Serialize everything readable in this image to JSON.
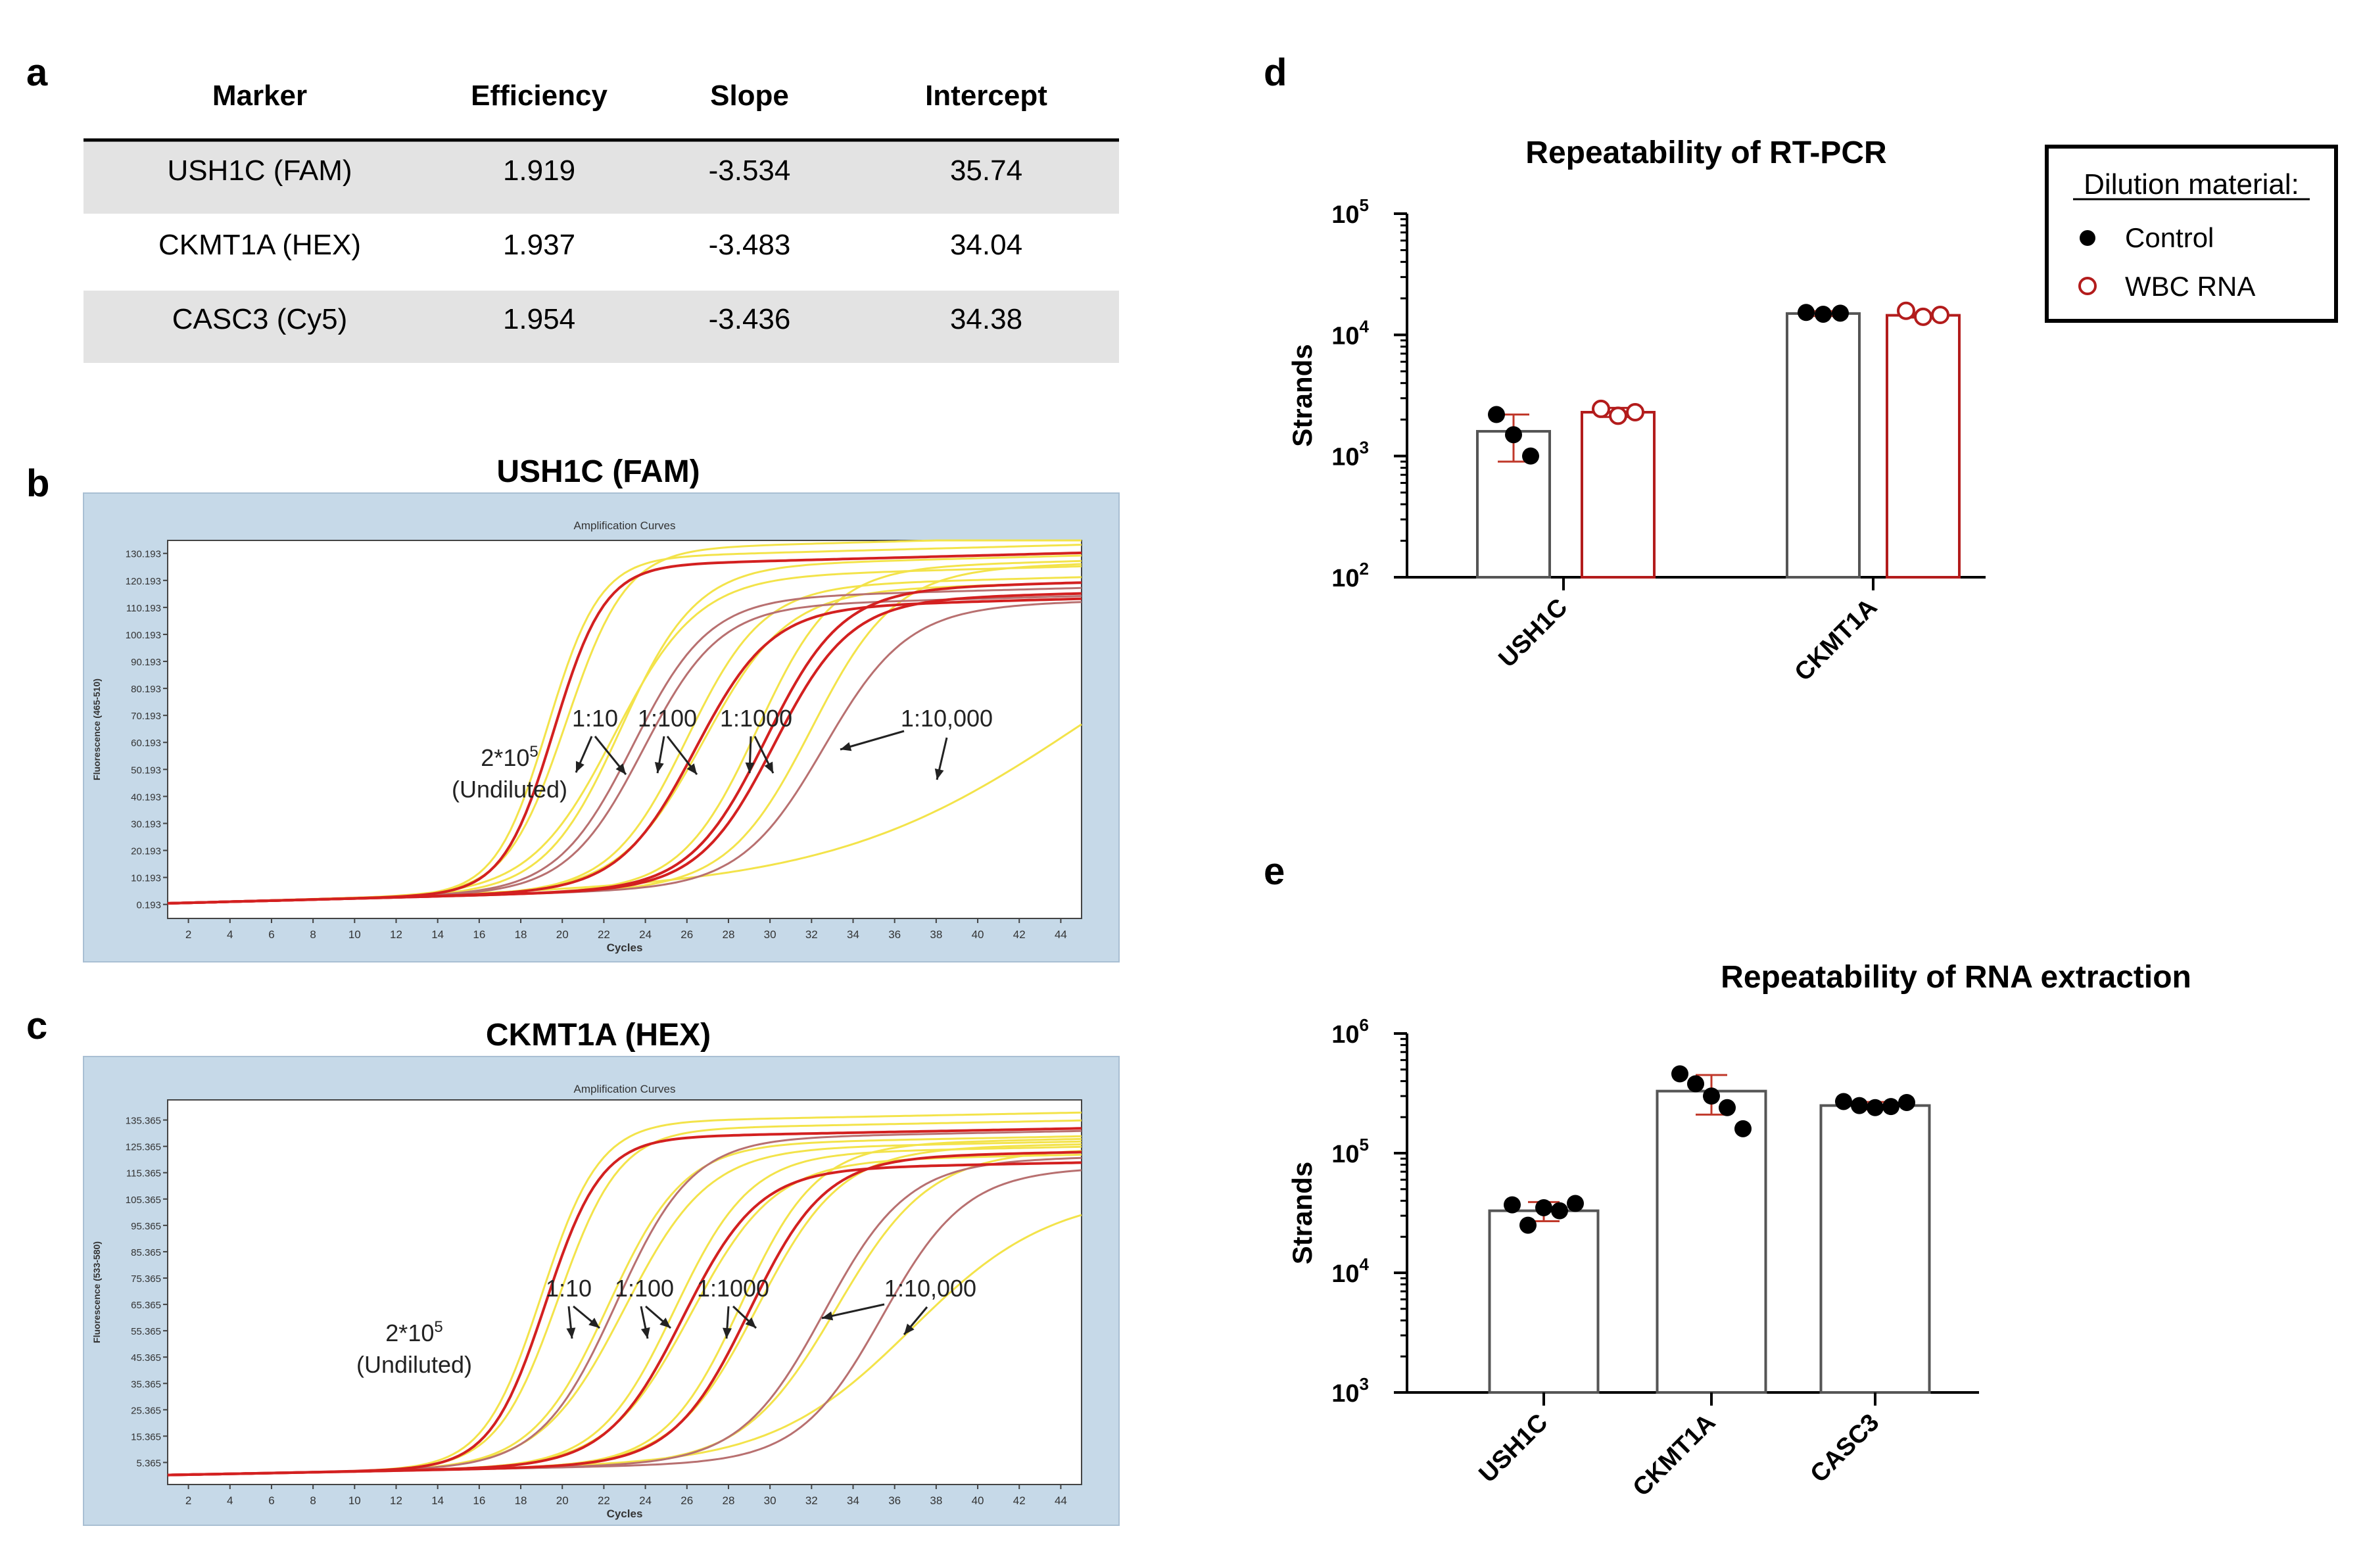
{
  "panels": {
    "a": "a",
    "b": "b",
    "c": "c",
    "d": "d",
    "e": "e"
  },
  "table": {
    "headers": [
      "Marker",
      "Efficiency",
      "Slope",
      "Intercept"
    ],
    "rows": [
      [
        "USH1C (FAM)",
        "1.919",
        "-3.534",
        "35.74"
      ],
      [
        "CKMT1A (HEX)",
        "1.937",
        "-3.483",
        "34.04"
      ],
      [
        "CASC3 (Cy5)",
        "1.954",
        "-3.436",
        "34.38"
      ]
    ]
  },
  "colors": {
    "panel_bg": "#c6d9e8",
    "row_shade": "#e3e3e3",
    "control": "#000000",
    "wbc": "#b31c1c",
    "bar_gray": "#555555",
    "curve_red": "#d32020",
    "curve_yellow": "#f3e34a",
    "curve_rose": "#b87070"
  },
  "chart_data": [
    {
      "id": "b",
      "type": "line",
      "title": "USH1C (FAM)",
      "subtitle": "Amplification Curves",
      "xlabel": "Cycles",
      "ylabel": "Fluorescence (465-510)",
      "xlim": [
        1,
        45
      ],
      "ylim": [
        -5,
        135
      ],
      "x_ticks": [
        2,
        4,
        6,
        8,
        10,
        12,
        14,
        16,
        18,
        20,
        22,
        24,
        26,
        28,
        30,
        32,
        34,
        36,
        38,
        40,
        42,
        44
      ],
      "y_ticks": [
        "0.193",
        "10.193",
        "20.193",
        "30.193",
        "40.193",
        "50.193",
        "60.193",
        "70.193",
        "80.193",
        "90.193",
        "100.193",
        "110.193",
        "120.193",
        "130.193"
      ],
      "y_tick_values": [
        0.193,
        10.193,
        20.193,
        30.193,
        40.193,
        50.193,
        60.193,
        70.193,
        80.193,
        90.193,
        100.193,
        110.193,
        120.193,
        130.193
      ],
      "series": [
        {
          "name": "Undiluted",
          "color": "red",
          "mid": 19.6,
          "k": 0.82,
          "top": 121,
          "base": 0.6,
          "drift": 0.2
        },
        {
          "name": "Undiluted",
          "color": "yellow",
          "mid": 19.3,
          "k": 0.8,
          "top": 124,
          "base": 0.6,
          "drift": 0.2
        },
        {
          "name": "Undiluted",
          "color": "yellow",
          "mid": 20.2,
          "k": 0.7,
          "top": 127,
          "base": 0.6,
          "drift": 0.2
        },
        {
          "name": "1:10",
          "color": "rose",
          "mid": 23.4,
          "k": 0.55,
          "top": 108,
          "base": 0.6,
          "drift": 0.2
        },
        {
          "name": "1:10",
          "color": "rose",
          "mid": 23.9,
          "k": 0.55,
          "top": 105,
          "base": 0.6,
          "drift": 0.2
        },
        {
          "name": "1:10",
          "color": "yellow",
          "mid": 22.8,
          "k": 0.55,
          "top": 120,
          "base": 0.6,
          "drift": 0.2
        },
        {
          "name": "1:10",
          "color": "yellow",
          "mid": 22.5,
          "k": 0.5,
          "top": 116,
          "base": 0.6,
          "drift": 0.2
        },
        {
          "name": "1:100",
          "color": "red",
          "mid": 26.4,
          "k": 0.55,
          "top": 104,
          "base": 0.6,
          "drift": 0.2
        },
        {
          "name": "1:100",
          "color": "yellow",
          "mid": 26.0,
          "k": 0.55,
          "top": 112,
          "base": 0.6,
          "drift": 0.2
        },
        {
          "name": "1:100",
          "color": "yellow",
          "mid": 26.8,
          "k": 0.5,
          "top": 110,
          "base": 0.6,
          "drift": 0.2
        },
        {
          "name": "1:1000",
          "color": "red",
          "mid": 29.8,
          "k": 0.55,
          "top": 110,
          "base": 0.6,
          "drift": 0.2
        },
        {
          "name": "1:1000",
          "color": "red",
          "mid": 30.2,
          "k": 0.55,
          "top": 106,
          "base": 0.6,
          "drift": 0.2
        },
        {
          "name": "1:1000",
          "color": "yellow",
          "mid": 29.4,
          "k": 0.55,
          "top": 118,
          "base": 0.6,
          "drift": 0.2
        },
        {
          "name": "1:10,000",
          "color": "rose",
          "mid": 32.6,
          "k": 0.5,
          "top": 103,
          "base": 0.6,
          "drift": 0.2
        },
        {
          "name": "1:10,000",
          "color": "yellow",
          "mid": 32.0,
          "k": 0.5,
          "top": 117,
          "base": 0.6,
          "drift": 0.2
        },
        {
          "name": "1:10,000",
          "color": "yellow",
          "mid": 45.0,
          "k": 0.17,
          "top": 115,
          "base": 0.6,
          "drift": 0.2
        }
      ],
      "annotations": {
        "undiluted_top": "2*10",
        "undiluted_sup": "5",
        "undiluted_bottom": "(Undiluted)",
        "d1": "1:10",
        "d2": "1:100",
        "d3": "1:1000",
        "d4": "1:10,000"
      }
    },
    {
      "id": "c",
      "type": "line",
      "title": "CKMT1A (HEX)",
      "subtitle": "Amplification Curves",
      "xlabel": "Cycles",
      "ylabel": "Fluorescence (533-580)",
      "xlim": [
        1,
        45
      ],
      "ylim": [
        -3,
        143
      ],
      "x_ticks": [
        2,
        4,
        6,
        8,
        10,
        12,
        14,
        16,
        18,
        20,
        22,
        24,
        26,
        28,
        30,
        32,
        34,
        36,
        38,
        40,
        42,
        44
      ],
      "y_ticks": [
        "5.365",
        "15.365",
        "25.365",
        "35.365",
        "45.365",
        "55.365",
        "65.365",
        "75.365",
        "85.365",
        "95.365",
        "105.365",
        "115.365",
        "125.365",
        "135.365"
      ],
      "y_tick_values": [
        5.365,
        15.365,
        25.365,
        35.365,
        45.365,
        55.365,
        65.365,
        75.365,
        85.365,
        95.365,
        105.365,
        115.365,
        125.365,
        135.365
      ],
      "series": [
        {
          "name": "Undiluted",
          "color": "red",
          "mid": 19.2,
          "k": 0.75,
          "top": 125,
          "base": 0.6,
          "drift": 0.15
        },
        {
          "name": "Undiluted",
          "color": "yellow",
          "mid": 19.0,
          "k": 0.72,
          "top": 131,
          "base": 0.6,
          "drift": 0.15
        },
        {
          "name": "Undiluted",
          "color": "yellow",
          "mid": 19.8,
          "k": 0.68,
          "top": 128,
          "base": 0.6,
          "drift": 0.15
        },
        {
          "name": "1:10",
          "color": "rose",
          "mid": 22.6,
          "k": 0.55,
          "top": 124,
          "base": 0.6,
          "drift": 0.15
        },
        {
          "name": "1:10",
          "color": "yellow",
          "mid": 22.2,
          "k": 0.55,
          "top": 122,
          "base": 0.6,
          "drift": 0.15
        },
        {
          "name": "1:10",
          "color": "yellow",
          "mid": 23.0,
          "k": 0.5,
          "top": 120,
          "base": 0.6,
          "drift": 0.15
        },
        {
          "name": "1:100",
          "color": "red",
          "mid": 25.8,
          "k": 0.55,
          "top": 112,
          "base": 0.6,
          "drift": 0.15
        },
        {
          "name": "1:100",
          "color": "yellow",
          "mid": 25.4,
          "k": 0.55,
          "top": 118,
          "base": 0.6,
          "drift": 0.15
        },
        {
          "name": "1:100",
          "color": "yellow",
          "mid": 26.2,
          "k": 0.5,
          "top": 115,
          "base": 0.6,
          "drift": 0.15
        },
        {
          "name": "1:1000",
          "color": "red",
          "mid": 29.0,
          "k": 0.55,
          "top": 116,
          "base": 0.6,
          "drift": 0.15
        },
        {
          "name": "1:1000",
          "color": "yellow",
          "mid": 28.6,
          "k": 0.55,
          "top": 121,
          "base": 0.6,
          "drift": 0.15
        },
        {
          "name": "1:1000",
          "color": "yellow",
          "mid": 29.4,
          "k": 0.5,
          "top": 119,
          "base": 0.6,
          "drift": 0.15
        },
        {
          "name": "1:10,000",
          "color": "rose",
          "mid": 32.6,
          "k": 0.5,
          "top": 114,
          "base": 0.6,
          "drift": 0.15
        },
        {
          "name": "1:10,000",
          "color": "rose",
          "mid": 35.4,
          "k": 0.5,
          "top": 110,
          "base": 0.6,
          "drift": 0.15
        },
        {
          "name": "1:10,000",
          "color": "yellow",
          "mid": 33.2,
          "k": 0.45,
          "top": 117,
          "base": 0.6,
          "drift": 0.15
        },
        {
          "name": "1:10,000",
          "color": "yellow",
          "mid": 36.8,
          "k": 0.3,
          "top": 100,
          "base": 0.6,
          "drift": 0.15
        }
      ],
      "annotations": {
        "undiluted_top": "2*10",
        "undiluted_sup": "5",
        "undiluted_bottom": "(Undiluted)",
        "d1": "1:10",
        "d2": "1:100",
        "d3": "1:1000",
        "d4": "1:10,000"
      }
    },
    {
      "id": "d",
      "type": "bar",
      "scale": "log",
      "title": "Repeatability of RT-PCR",
      "ylabel": "Strands",
      "ylim": [
        100,
        100000
      ],
      "y_ticks": [
        {
          "base": "10",
          "exp": "2"
        },
        {
          "base": "10",
          "exp": "3"
        },
        {
          "base": "10",
          "exp": "4"
        },
        {
          "base": "10",
          "exp": "5"
        }
      ],
      "categories": [
        "USH1C",
        "CKMT1A"
      ],
      "legend_title": "Dilution material:",
      "legend": [
        "Control",
        "WBC RNA"
      ],
      "series": [
        {
          "name": "Control",
          "values": [
            1600,
            15000
          ],
          "sd_low": [
            900,
            14300
          ],
          "sd_high": [
            2200,
            15700
          ],
          "points": [
            [
              2200,
              1500,
              1000
            ],
            [
              15300,
              14800,
              15100
            ]
          ]
        },
        {
          "name": "WBC RNA",
          "values": [
            2300,
            14500
          ],
          "sd_low": [
            2100,
            13900
          ],
          "sd_high": [
            2500,
            15100
          ],
          "points": [
            [
              2450,
              2150,
              2300
            ],
            [
              15800,
              14100,
              14600
            ]
          ]
        }
      ]
    },
    {
      "id": "e",
      "type": "bar",
      "scale": "log",
      "title": "Repeatability of RNA extraction",
      "ylabel": "Strands",
      "ylim": [
        1000,
        1000000
      ],
      "y_ticks": [
        {
          "base": "10",
          "exp": "3"
        },
        {
          "base": "10",
          "exp": "4"
        },
        {
          "base": "10",
          "exp": "5"
        },
        {
          "base": "10",
          "exp": "6"
        }
      ],
      "categories": [
        "USH1C",
        "CKMT1A",
        "CASC3"
      ],
      "series": [
        {
          "name": "Control",
          "values": [
            33000,
            330000,
            250000
          ],
          "sd_low": [
            27000,
            210000,
            232000
          ],
          "sd_high": [
            39000,
            450000,
            268000
          ],
          "points": [
            [
              37000,
              25000,
              35000,
              33000,
              38000
            ],
            [
              460000,
              380000,
              300000,
              240000,
              160000
            ],
            [
              270000,
              250000,
              240000,
              245000,
              265000
            ]
          ]
        }
      ]
    }
  ]
}
